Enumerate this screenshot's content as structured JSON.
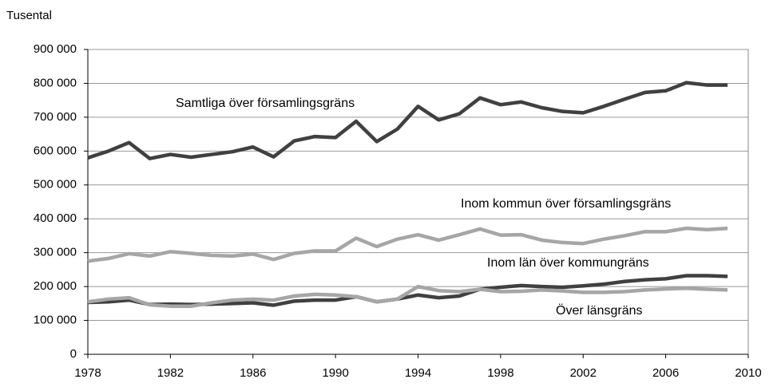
{
  "chart_data": {
    "type": "line",
    "y_axis_label": "Tusental",
    "x": [
      1978,
      1979,
      1980,
      1981,
      1982,
      1983,
      1984,
      1985,
      1986,
      1987,
      1988,
      1989,
      1990,
      1991,
      1992,
      1993,
      1994,
      1995,
      1996,
      1997,
      1998,
      1999,
      2000,
      2001,
      2002,
      2003,
      2004,
      2005,
      2006,
      2007,
      2008,
      2009
    ],
    "xlim": [
      1978,
      2010
    ],
    "xticks": [
      1978,
      1982,
      1986,
      1990,
      1994,
      1998,
      2002,
      2006,
      2010
    ],
    "ylim": [
      0,
      900000
    ],
    "yticks": [
      {
        "value": 0,
        "label": "0"
      },
      {
        "value": 100000,
        "label": "100 000"
      },
      {
        "value": 200000,
        "label": "200 000"
      },
      {
        "value": 300000,
        "label": "300 000"
      },
      {
        "value": 400000,
        "label": "400 000"
      },
      {
        "value": 500000,
        "label": "500 000"
      },
      {
        "value": 600000,
        "label": "600 000"
      },
      {
        "value": 700000,
        "label": "700 000"
      },
      {
        "value": 800000,
        "label": "800 000"
      },
      {
        "value": 900000,
        "label": "900 000"
      }
    ],
    "grid": true,
    "series": [
      {
        "name": "Samtliga över församlingsgräns",
        "color": "#404040",
        "values": [
          580000,
          600000,
          625000,
          578000,
          590000,
          582000,
          590000,
          598000,
          612000,
          583000,
          630000,
          643000,
          640000,
          688000,
          628000,
          665000,
          732000,
          692000,
          710000,
          757000,
          737000,
          745000,
          728000,
          717000,
          713000,
          732000,
          753000,
          773000,
          778000,
          802000,
          795000,
          795000
        ]
      },
      {
        "name": "Inom kommun över församlingsgräns",
        "color": "#a6a6a6",
        "values": [
          275000,
          283000,
          297000,
          290000,
          303000,
          298000,
          292000,
          290000,
          296000,
          280000,
          298000,
          305000,
          305000,
          343000,
          318000,
          340000,
          353000,
          337000,
          353000,
          370000,
          352000,
          353000,
          337000,
          330000,
          327000,
          340000,
          350000,
          362000,
          362000,
          372000,
          368000,
          372000
        ]
      },
      {
        "name": "Inom län över kommungräns",
        "color": "#404040",
        "values": [
          153000,
          155000,
          160000,
          147000,
          148000,
          147000,
          148000,
          150000,
          152000,
          145000,
          157000,
          160000,
          160000,
          170000,
          155000,
          163000,
          175000,
          167000,
          172000,
          192000,
          198000,
          203000,
          200000,
          198000,
          202000,
          207000,
          215000,
          220000,
          223000,
          232000,
          232000,
          230000
        ]
      },
      {
        "name": "Över länsgräns",
        "color": "#a6a6a6",
        "values": [
          155000,
          163000,
          167000,
          146000,
          142000,
          142000,
          152000,
          160000,
          163000,
          160000,
          172000,
          177000,
          175000,
          170000,
          155000,
          163000,
          200000,
          188000,
          185000,
          192000,
          185000,
          186000,
          190000,
          187000,
          183000,
          183000,
          185000,
          190000,
          193000,
          195000,
          192000,
          190000
        ]
      }
    ]
  }
}
